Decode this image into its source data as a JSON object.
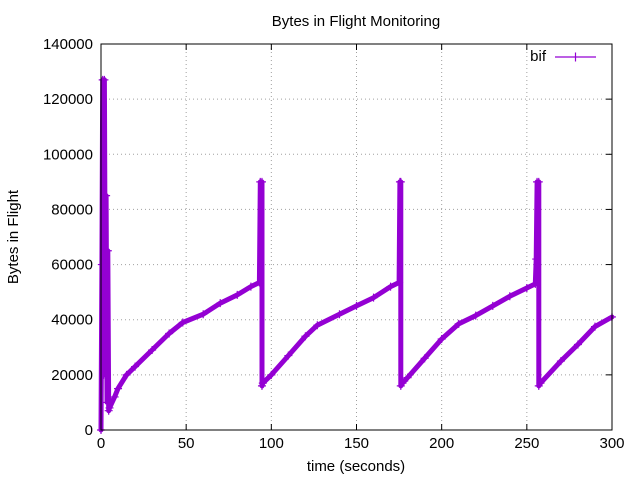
{
  "chart_data": {
    "type": "line",
    "title": "Bytes in Flight Monitoring",
    "xlabel": "time (seconds)",
    "ylabel": "Bytes in Flight",
    "xlim": [
      0,
      300
    ],
    "ylim": [
      0,
      140000
    ],
    "xticks": [
      0,
      50,
      100,
      150,
      200,
      250,
      300
    ],
    "yticks": [
      0,
      20000,
      40000,
      60000,
      80000,
      100000,
      120000,
      140000
    ],
    "grid": true,
    "legend": "top-right",
    "series": [
      {
        "name": "bif",
        "color": "#9400d3",
        "marker": "plus",
        "points": [
          [
            0,
            0
          ],
          [
            0.5,
            60000
          ],
          [
            1,
            127000
          ],
          [
            1.5,
            20000
          ],
          [
            2,
            127000
          ],
          [
            2.5,
            40000
          ],
          [
            3,
            85000
          ],
          [
            3.5,
            10000
          ],
          [
            4,
            65000
          ],
          [
            4.5,
            7000
          ],
          [
            5,
            8000
          ],
          [
            8,
            12000
          ],
          [
            10,
            15000
          ],
          [
            15,
            20000
          ],
          [
            20,
            23000
          ],
          [
            30,
            29000
          ],
          [
            40,
            35000
          ],
          [
            48,
            39000
          ],
          [
            60,
            42000
          ],
          [
            70,
            46000
          ],
          [
            80,
            49000
          ],
          [
            88,
            52000
          ],
          [
            93,
            53500
          ],
          [
            93.5,
            90000
          ],
          [
            94.5,
            90000
          ],
          [
            94.5,
            16000
          ],
          [
            95,
            17000
          ],
          [
            100,
            20000
          ],
          [
            110,
            27000
          ],
          [
            120,
            34000
          ],
          [
            127,
            38000
          ],
          [
            140,
            42000
          ],
          [
            150,
            45000
          ],
          [
            160,
            48000
          ],
          [
            170,
            52000
          ],
          [
            175,
            53500
          ],
          [
            175.5,
            90000
          ],
          [
            176,
            90000
          ],
          [
            176,
            16000
          ],
          [
            177,
            17000
          ],
          [
            180,
            19000
          ],
          [
            190,
            26000
          ],
          [
            200,
            33000
          ],
          [
            210,
            38500
          ],
          [
            220,
            41500
          ],
          [
            230,
            45000
          ],
          [
            240,
            48500
          ],
          [
            250,
            51500
          ],
          [
            255,
            53000
          ],
          [
            255.5,
            62000
          ],
          [
            256,
            90000
          ],
          [
            257,
            90000
          ],
          [
            257,
            16000
          ],
          [
            258,
            17000
          ],
          [
            270,
            25000
          ],
          [
            280,
            31000
          ],
          [
            290,
            37500
          ],
          [
            300,
            41000
          ]
        ]
      }
    ]
  }
}
